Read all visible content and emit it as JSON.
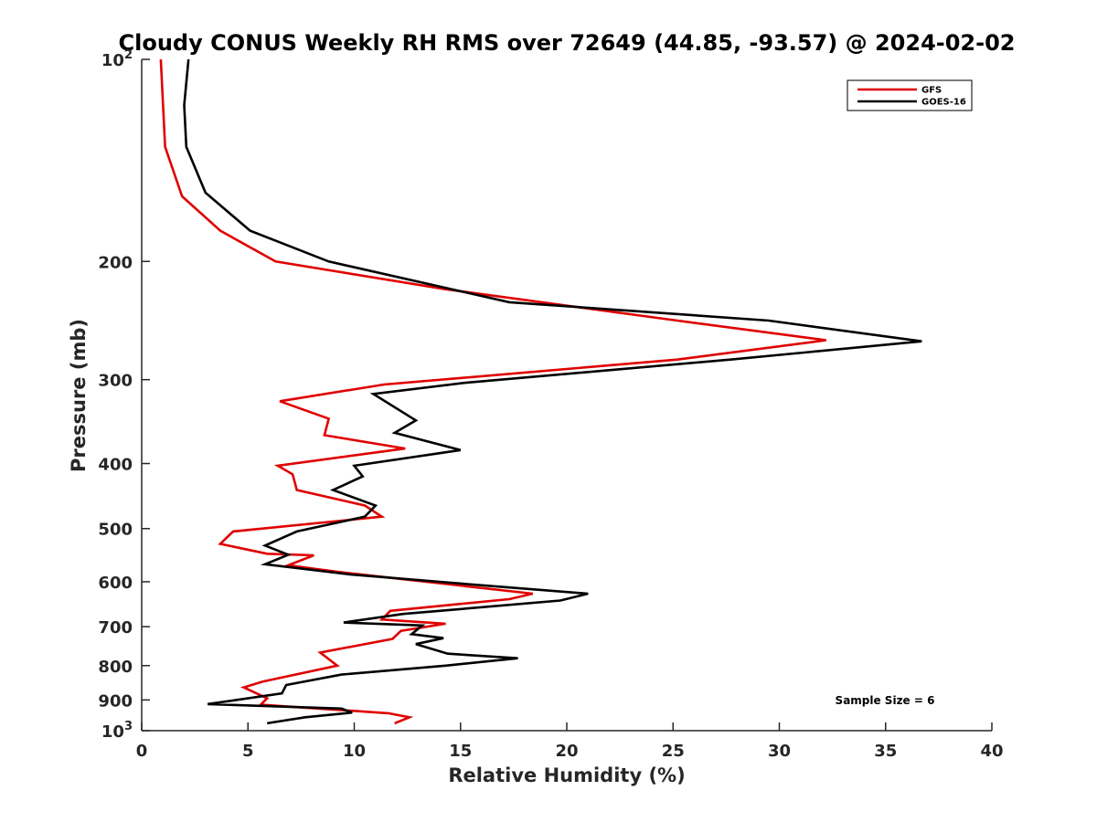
{
  "chart_data": {
    "type": "line",
    "orientation": "profile",
    "title": "Cloudy CONUS Weekly RH RMS over 72649 (44.85, -93.57) @ 2024-02-02",
    "xlabel": "Relative Humidity (%)",
    "ylabel": "Pressure (mb)",
    "xlim": [
      0,
      40
    ],
    "ylim": [
      100,
      1000
    ],
    "y_scale": "log",
    "y_reversed": true,
    "grid": false,
    "legend_position": "top-right",
    "x_ticks": [
      "0",
      "5",
      "10",
      "15",
      "20",
      "25",
      "30",
      "35",
      "40"
    ],
    "y_ticks": [
      {
        "value": 100,
        "base": "10",
        "exp": "2"
      },
      {
        "value": 200,
        "label": "200"
      },
      {
        "value": 300,
        "label": "300"
      },
      {
        "value": 400,
        "label": "400"
      },
      {
        "value": 500,
        "label": "500"
      },
      {
        "value": 600,
        "label": "600"
      },
      {
        "value": 700,
        "label": "700"
      },
      {
        "value": 800,
        "label": "800"
      },
      {
        "value": 900,
        "label": "900"
      },
      {
        "value": 1000,
        "base": "10",
        "exp": "3"
      }
    ],
    "annotation": "Sample Size = 6",
    "series": [
      {
        "name": "GFS",
        "color": "#e00000",
        "points": [
          {
            "x": 0.9,
            "p": 100
          },
          {
            "x": 1.1,
            "p": 135
          },
          {
            "x": 1.9,
            "p": 160
          },
          {
            "x": 3.7,
            "p": 180
          },
          {
            "x": 6.3,
            "p": 200
          },
          {
            "x": 14.3,
            "p": 220
          },
          {
            "x": 25.2,
            "p": 245
          },
          {
            "x": 32.2,
            "p": 262
          },
          {
            "x": 25.2,
            "p": 280
          },
          {
            "x": 11.4,
            "p": 305
          },
          {
            "x": 6.5,
            "p": 323
          },
          {
            "x": 8.8,
            "p": 343
          },
          {
            "x": 8.6,
            "p": 363
          },
          {
            "x": 12.4,
            "p": 380
          },
          {
            "x": 6.4,
            "p": 403
          },
          {
            "x": 7.1,
            "p": 415
          },
          {
            "x": 7.3,
            "p": 438
          },
          {
            "x": 10.5,
            "p": 462
          },
          {
            "x": 11.3,
            "p": 480
          },
          {
            "x": 4.3,
            "p": 505
          },
          {
            "x": 3.7,
            "p": 527
          },
          {
            "x": 5.9,
            "p": 545
          },
          {
            "x": 8.1,
            "p": 548
          },
          {
            "x": 6.9,
            "p": 567
          },
          {
            "x": 9.2,
            "p": 580
          },
          {
            "x": 18.4,
            "p": 625
          },
          {
            "x": 17.3,
            "p": 637
          },
          {
            "x": 11.7,
            "p": 663
          },
          {
            "x": 11.3,
            "p": 683
          },
          {
            "x": 14.3,
            "p": 693
          },
          {
            "x": 12.2,
            "p": 710
          },
          {
            "x": 11.8,
            "p": 730
          },
          {
            "x": 8.4,
            "p": 765
          },
          {
            "x": 9.2,
            "p": 800
          },
          {
            "x": 5.7,
            "p": 845
          },
          {
            "x": 4.8,
            "p": 862
          },
          {
            "x": 5.9,
            "p": 895
          },
          {
            "x": 5.6,
            "p": 915
          },
          {
            "x": 11.6,
            "p": 942
          },
          {
            "x": 12.6,
            "p": 955
          },
          {
            "x": 11.9,
            "p": 975
          }
        ]
      },
      {
        "name": "GOES-16",
        "color": "#000000",
        "points": [
          {
            "x": 2.2,
            "p": 100
          },
          {
            "x": 2.0,
            "p": 117
          },
          {
            "x": 2.1,
            "p": 135
          },
          {
            "x": 3.0,
            "p": 158
          },
          {
            "x": 5.1,
            "p": 180
          },
          {
            "x": 8.8,
            "p": 200
          },
          {
            "x": 17.3,
            "p": 230
          },
          {
            "x": 29.5,
            "p": 245
          },
          {
            "x": 36.7,
            "p": 263
          },
          {
            "x": 27.7,
            "p": 280
          },
          {
            "x": 15.3,
            "p": 303
          },
          {
            "x": 10.9,
            "p": 315
          },
          {
            "x": 12.9,
            "p": 345
          },
          {
            "x": 11.9,
            "p": 360
          },
          {
            "x": 15.0,
            "p": 382
          },
          {
            "x": 10.0,
            "p": 403
          },
          {
            "x": 10.4,
            "p": 418
          },
          {
            "x": 9.0,
            "p": 438
          },
          {
            "x": 11.0,
            "p": 462
          },
          {
            "x": 10.5,
            "p": 480
          },
          {
            "x": 7.3,
            "p": 505
          },
          {
            "x": 5.8,
            "p": 530
          },
          {
            "x": 6.9,
            "p": 547
          },
          {
            "x": 5.8,
            "p": 565
          },
          {
            "x": 9.8,
            "p": 585
          },
          {
            "x": 16.2,
            "p": 608
          },
          {
            "x": 21.0,
            "p": 625
          },
          {
            "x": 19.7,
            "p": 640
          },
          {
            "x": 12.3,
            "p": 670
          },
          {
            "x": 9.5,
            "p": 690
          },
          {
            "x": 13.2,
            "p": 697
          },
          {
            "x": 12.7,
            "p": 718
          },
          {
            "x": 14.2,
            "p": 728
          },
          {
            "x": 12.9,
            "p": 743
          },
          {
            "x": 14.4,
            "p": 768
          },
          {
            "x": 17.7,
            "p": 780
          },
          {
            "x": 14.3,
            "p": 800
          },
          {
            "x": 9.4,
            "p": 825
          },
          {
            "x": 6.8,
            "p": 855
          },
          {
            "x": 6.6,
            "p": 880
          },
          {
            "x": 3.1,
            "p": 913
          },
          {
            "x": 9.4,
            "p": 927
          },
          {
            "x": 9.9,
            "p": 940
          },
          {
            "x": 7.7,
            "p": 955
          },
          {
            "x": 5.9,
            "p": 975
          }
        ]
      }
    ]
  }
}
